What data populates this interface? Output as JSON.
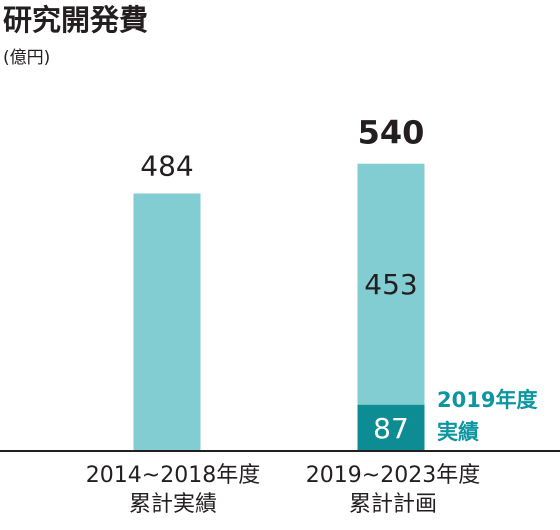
{
  "chart_data": {
    "type": "bar",
    "title": "研究開発費",
    "unit": "(億円)",
    "categories": [
      {
        "line1": "2014~2018年度",
        "line2": "累計実績"
      },
      {
        "line1": "2019~2023年度",
        "line2": "累計計画"
      }
    ],
    "series": [
      {
        "name": "2019年度実績",
        "name_line1": "2019年度",
        "name_line2": "実績",
        "values": [
          null,
          87
        ]
      },
      {
        "values": [
          484,
          453
        ]
      }
    ],
    "totals": [
      484,
      540
    ],
    "data_labels": {
      "bar1": "484",
      "bar2_total": "540",
      "bar2_upper": "453",
      "bar2_lower": "87"
    },
    "ylim": [
      0,
      620
    ],
    "colors": {
      "bar": "#82cdd2",
      "highlight": "#0e8c93",
      "highlight_text": "#0e96a0",
      "axis": "#231f20",
      "text": "#231f20"
    }
  }
}
